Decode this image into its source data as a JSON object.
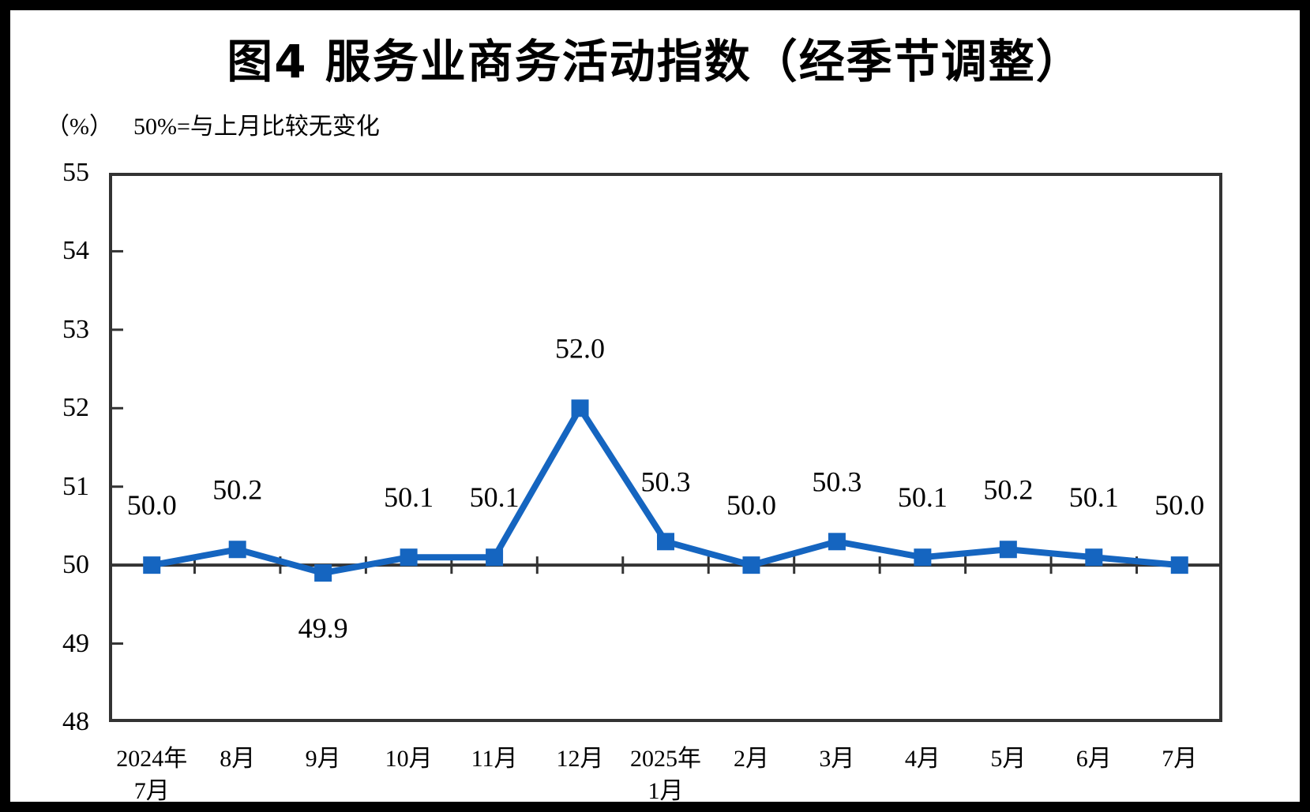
{
  "page": {
    "background": "#ffffff",
    "frame_color": "#000000"
  },
  "chart_data": {
    "type": "line",
    "title": "图4 服务业商务活动指数（经季节调整）",
    "unit_label": "（%）",
    "reference_note": "50%=与上月比较无变化",
    "categories": [
      [
        "2024年",
        "7月"
      ],
      [
        "8月"
      ],
      [
        "9月"
      ],
      [
        "10月"
      ],
      [
        "11月"
      ],
      [
        "12月"
      ],
      [
        "2025年",
        "1月"
      ],
      [
        "2月"
      ],
      [
        "3月"
      ],
      [
        "4月"
      ],
      [
        "5月"
      ],
      [
        "6月"
      ],
      [
        "7月"
      ]
    ],
    "values": [
      50.0,
      50.2,
      49.9,
      50.1,
      50.1,
      52.0,
      50.3,
      50.0,
      50.3,
      50.1,
      50.2,
      50.1,
      50.0
    ],
    "label_position": [
      "above",
      "above",
      "below",
      "above",
      "above",
      "above",
      "above",
      "above",
      "above",
      "above",
      "above",
      "above",
      "above"
    ],
    "ylim": [
      48,
      55
    ],
    "y_ticks": [
      48,
      49,
      50,
      51,
      52,
      53,
      54,
      55
    ],
    "reference_line": 50,
    "grid": false,
    "legend": "none",
    "line_color": "#1565C0",
    "axis_color": "#333333",
    "text_color": "#000000"
  }
}
